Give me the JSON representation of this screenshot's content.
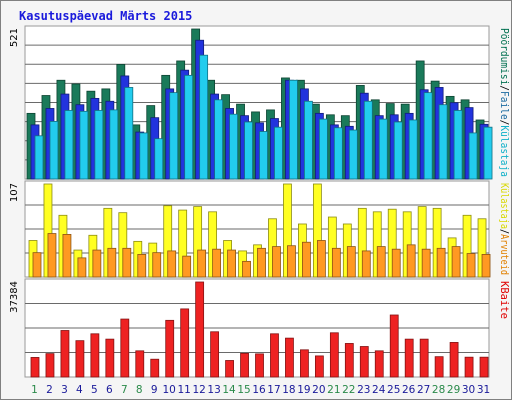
{
  "chart_data": {
    "type": "bar",
    "title": "Kasutuspäevad Märts 2015",
    "categories": [
      "1",
      "2",
      "3",
      "4",
      "5",
      "6",
      "7",
      "8",
      "9",
      "10",
      "11",
      "12",
      "13",
      "14",
      "15",
      "16",
      "17",
      "18",
      "19",
      "20",
      "21",
      "22",
      "23",
      "24",
      "25",
      "26",
      "27",
      "28",
      "29",
      "30",
      "31"
    ],
    "weekend_days": [
      "1",
      "7",
      "8",
      "14",
      "15",
      "21",
      "22",
      "28",
      "29"
    ],
    "panels": [
      {
        "id": "top",
        "ylabel": "521",
        "ymax": 521,
        "legend": [
          {
            "label": "Pöördumisi",
            "color": "#007050"
          },
          {
            "sep": "/"
          },
          {
            "label": "Faile",
            "color": "#1a6aa0"
          },
          {
            "sep": "/"
          },
          {
            "label": "Külastaja",
            "color": "#10b0c8"
          }
        ],
        "series": [
          {
            "name": "Pöördumisi",
            "color": "#1a7a5a",
            "values": [
              228,
              290,
              343,
              330,
              305,
              313,
              398,
              188,
              255,
              360,
              410,
              521,
              343,
              293,
              260,
              233,
              240,
              351,
              343,
              260,
              223,
              220,
              325,
              275,
              262,
              260,
              410,
              340,
              287,
              275,
              205
            ]
          },
          {
            "name": "Faile",
            "color": "#2233dd",
            "values": [
              188,
              245,
              295,
              258,
              280,
              270,
              358,
              163,
              213,
              313,
              378,
              482,
              295,
              245,
              220,
              195,
              210,
              343,
              313,
              228,
              188,
              183,
              298,
              220,
              223,
              228,
              310,
              318,
              265,
              248,
              190
            ]
          },
          {
            "name": "Külastaja",
            "color": "#22ccee",
            "values": [
              150,
              200,
              238,
              235,
              238,
              240,
              318,
              160,
              140,
              300,
              360,
              430,
              275,
              225,
              198,
              165,
              180,
              343,
              270,
              208,
              178,
              170,
              270,
              208,
              198,
              205,
              300,
              258,
              238,
              160,
              180
            ]
          }
        ]
      },
      {
        "id": "middle",
        "ylabel": "107",
        "ymax": 107,
        "legend": [
          {
            "label": "Külastaja",
            "color": "#d8d800"
          },
          {
            "sep": "/"
          },
          {
            "label": "Arvuteid",
            "color": "#e08000"
          }
        ],
        "series": [
          {
            "name": "Külastaja",
            "color": "#ffff22",
            "values": [
              42,
              107,
              71,
              31,
              48,
              79,
              74,
              41,
              39,
              82,
              77,
              81,
              75,
              42,
              30,
              37,
              67,
              107,
              61,
              107,
              69,
              61,
              79,
              75,
              78,
              75,
              81,
              79,
              45,
              71,
              67
            ]
          },
          {
            "name": "Arvuteid",
            "color": "#ff9922",
            "values": [
              28,
              50,
              49,
              22,
              31,
              33,
              33,
              26,
              28,
              30,
              24,
              31,
              32,
              31,
              18,
              33,
              35,
              36,
              40,
              42,
              33,
              35,
              30,
              35,
              32,
              37,
              32,
              33,
              35,
              27,
              26
            ]
          }
        ]
      },
      {
        "id": "bottom",
        "ylabel": "37384",
        "ymax": 37384,
        "legend": [
          {
            "label": "KBaite",
            "color": "#e00000"
          }
        ],
        "series": [
          {
            "name": "KBaite",
            "color": "#ee2222",
            "values": [
              7700,
              9200,
              18300,
              14300,
              17000,
              14900,
              22800,
              10300,
              7000,
              22300,
              26800,
              37384,
              17800,
              6500,
              9300,
              9100,
              17000,
              15300,
              10700,
              8300,
              17400,
              13200,
              12000,
              10300,
              24400,
              14900,
              14900,
              8000,
              13600,
              7800,
              7800
            ]
          }
        ]
      }
    ],
    "grid": true
  }
}
